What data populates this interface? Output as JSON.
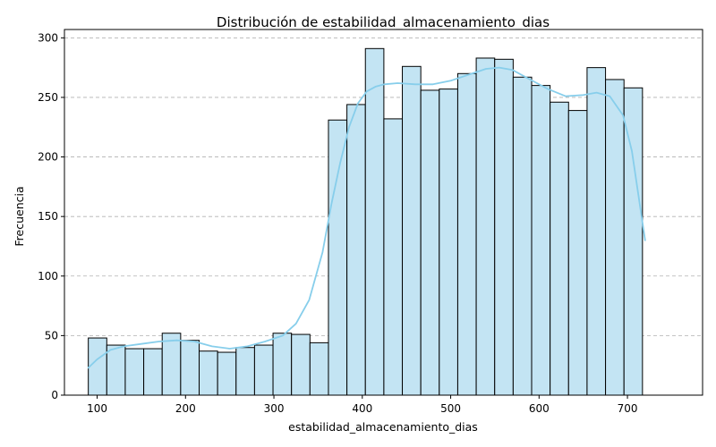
{
  "chart_data": {
    "type": "bar",
    "title": "Distribución de estabilidad_almacenamiento_dias",
    "xlabel": "estabilidad_almacenamiento_dias",
    "ylabel": "Frecuencia",
    "xlim": [
      63,
      785
    ],
    "ylim": [
      0,
      307
    ],
    "xticks": [
      100,
      200,
      300,
      400,
      500,
      600,
      700
    ],
    "yticks": [
      0,
      50,
      100,
      150,
      200,
      250,
      300
    ],
    "grid": {
      "y": true,
      "x": false,
      "style": "dashed"
    },
    "bins": {
      "start": 90,
      "width": 20.9,
      "counts": [
        48,
        42,
        39,
        39,
        52,
        46,
        37,
        36,
        40,
        42,
        52,
        51,
        44,
        231,
        244,
        291,
        232,
        276,
        256,
        257,
        270,
        283,
        282,
        267,
        260,
        246,
        239,
        275,
        265,
        258
      ]
    },
    "kde": {
      "x": [
        90,
        100,
        115,
        130,
        150,
        170,
        190,
        210,
        230,
        250,
        270,
        290,
        310,
        325,
        340,
        355,
        365,
        375,
        385,
        395,
        405,
        415,
        425,
        440,
        460,
        480,
        500,
        520,
        540,
        555,
        570,
        590,
        610,
        630,
        650,
        665,
        680,
        695,
        705,
        712,
        720
      ],
      "y": [
        23,
        30,
        38,
        41,
        43,
        45,
        46,
        45,
        41,
        39,
        41,
        45,
        50,
        60,
        80,
        120,
        160,
        195,
        225,
        245,
        255,
        259,
        261,
        262,
        261,
        261,
        264,
        269,
        274,
        275,
        273,
        265,
        257,
        251,
        252,
        254,
        251,
        235,
        205,
        170,
        130
      ]
    },
    "colors": {
      "bar_fill": "#c3e4f3",
      "bar_edge": "#000000",
      "kde_line": "#87ceeb",
      "grid": "#b0b0b0"
    }
  }
}
